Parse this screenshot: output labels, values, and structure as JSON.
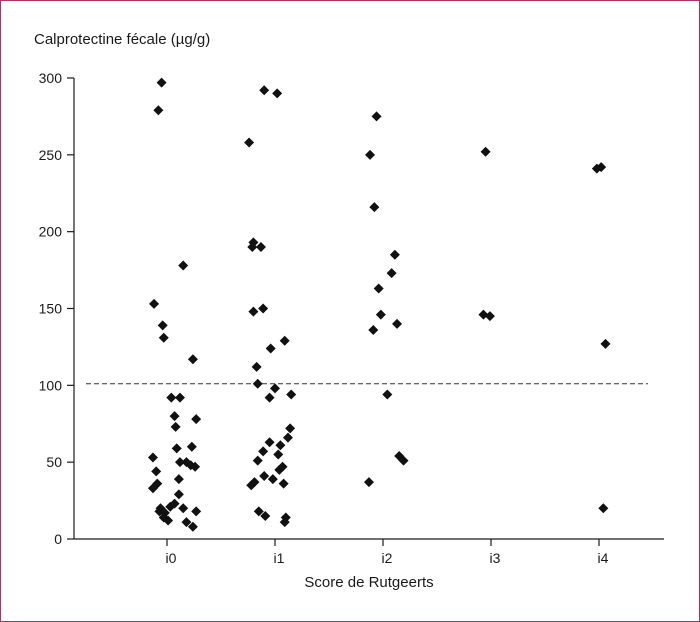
{
  "chart_data": {
    "type": "scatter",
    "title": "",
    "ylabel": "Calprotectine fécale (µg/g)",
    "xlabel": "Score de Rutgeerts",
    "categories": [
      "i0",
      "i1",
      "i2",
      "i3",
      "i4"
    ],
    "ylim": [
      0,
      300
    ],
    "yticks": [
      0,
      50,
      100,
      150,
      200,
      250,
      300
    ],
    "reference_line": {
      "y": 101,
      "style": "dashed"
    },
    "legend": "none",
    "grid": false,
    "series": [
      {
        "values": [
          {
            "category": "i0",
            "jitter": -0.05,
            "y": 297
          },
          {
            "category": "i0",
            "jitter": -0.08,
            "y": 279
          },
          {
            "category": "i0",
            "jitter": 0.15,
            "y": 178
          },
          {
            "category": "i0",
            "jitter": -0.12,
            "y": 153
          },
          {
            "category": "i0",
            "jitter": -0.04,
            "y": 139
          },
          {
            "category": "i0",
            "jitter": -0.03,
            "y": 131
          },
          {
            "category": "i0",
            "jitter": 0.24,
            "y": 117
          },
          {
            "category": "i0",
            "jitter": 0.04,
            "y": 92
          },
          {
            "category": "i0",
            "jitter": 0.12,
            "y": 92
          },
          {
            "category": "i0",
            "jitter": 0.07,
            "y": 80
          },
          {
            "category": "i0",
            "jitter": 0.27,
            "y": 78
          },
          {
            "category": "i0",
            "jitter": 0.08,
            "y": 73
          },
          {
            "category": "i0",
            "jitter": 0.09,
            "y": 59
          },
          {
            "category": "i0",
            "jitter": 0.23,
            "y": 60
          },
          {
            "category": "i0",
            "jitter": -0.13,
            "y": 53
          },
          {
            "category": "i0",
            "jitter": 0.12,
            "y": 50
          },
          {
            "category": "i0",
            "jitter": 0.18,
            "y": 50
          },
          {
            "category": "i0",
            "jitter": 0.22,
            "y": 48
          },
          {
            "category": "i0",
            "jitter": 0.26,
            "y": 47
          },
          {
            "category": "i0",
            "jitter": -0.1,
            "y": 44
          },
          {
            "category": "i0",
            "jitter": 0.11,
            "y": 39
          },
          {
            "category": "i0",
            "jitter": -0.09,
            "y": 36
          },
          {
            "category": "i0",
            "jitter": -0.13,
            "y": 33
          },
          {
            "category": "i0",
            "jitter": 0.11,
            "y": 29
          },
          {
            "category": "i0",
            "jitter": 0.07,
            "y": 23
          },
          {
            "category": "i0",
            "jitter": 0.03,
            "y": 21
          },
          {
            "category": "i0",
            "jitter": -0.06,
            "y": 20
          },
          {
            "category": "i0",
            "jitter": 0.15,
            "y": 20
          },
          {
            "category": "i0",
            "jitter": -0.07,
            "y": 18
          },
          {
            "category": "i0",
            "jitter": -0.02,
            "y": 17
          },
          {
            "category": "i0",
            "jitter": 0.27,
            "y": 18
          },
          {
            "category": "i0",
            "jitter": -0.03,
            "y": 14
          },
          {
            "category": "i0",
            "jitter": 0.01,
            "y": 12
          },
          {
            "category": "i0",
            "jitter": 0.18,
            "y": 11
          },
          {
            "category": "i0",
            "jitter": 0.24,
            "y": 8
          },
          {
            "category": "i1",
            "jitter": -0.1,
            "y": 292
          },
          {
            "category": "i1",
            "jitter": 0.02,
            "y": 290
          },
          {
            "category": "i1",
            "jitter": -0.24,
            "y": 258
          },
          {
            "category": "i1",
            "jitter": -0.2,
            "y": 193
          },
          {
            "category": "i1",
            "jitter": -0.21,
            "y": 190
          },
          {
            "category": "i1",
            "jitter": -0.13,
            "y": 190
          },
          {
            "category": "i1",
            "jitter": -0.11,
            "y": 150
          },
          {
            "category": "i1",
            "jitter": -0.2,
            "y": 148
          },
          {
            "category": "i1",
            "jitter": 0.09,
            "y": 129
          },
          {
            "category": "i1",
            "jitter": -0.04,
            "y": 124
          },
          {
            "category": "i1",
            "jitter": -0.17,
            "y": 112
          },
          {
            "category": "i1",
            "jitter": -0.16,
            "y": 101
          },
          {
            "category": "i1",
            "jitter": 0.0,
            "y": 98
          },
          {
            "category": "i1",
            "jitter": 0.15,
            "y": 94
          },
          {
            "category": "i1",
            "jitter": -0.05,
            "y": 92
          },
          {
            "category": "i1",
            "jitter": 0.14,
            "y": 72
          },
          {
            "category": "i1",
            "jitter": 0.12,
            "y": 66
          },
          {
            "category": "i1",
            "jitter": -0.05,
            "y": 63
          },
          {
            "category": "i1",
            "jitter": 0.05,
            "y": 61
          },
          {
            "category": "i1",
            "jitter": -0.11,
            "y": 57
          },
          {
            "category": "i1",
            "jitter": 0.03,
            "y": 55
          },
          {
            "category": "i1",
            "jitter": -0.16,
            "y": 51
          },
          {
            "category": "i1",
            "jitter": 0.07,
            "y": 47
          },
          {
            "category": "i1",
            "jitter": 0.04,
            "y": 45
          },
          {
            "category": "i1",
            "jitter": -0.1,
            "y": 41
          },
          {
            "category": "i1",
            "jitter": -0.02,
            "y": 39
          },
          {
            "category": "i1",
            "jitter": -0.19,
            "y": 37
          },
          {
            "category": "i1",
            "jitter": -0.22,
            "y": 35
          },
          {
            "category": "i1",
            "jitter": 0.08,
            "y": 36
          },
          {
            "category": "i1",
            "jitter": -0.15,
            "y": 18
          },
          {
            "category": "i1",
            "jitter": -0.09,
            "y": 15
          },
          {
            "category": "i1",
            "jitter": 0.1,
            "y": 14
          },
          {
            "category": "i1",
            "jitter": 0.09,
            "y": 11
          },
          {
            "category": "i2",
            "jitter": -0.06,
            "y": 275
          },
          {
            "category": "i2",
            "jitter": -0.12,
            "y": 250
          },
          {
            "category": "i2",
            "jitter": -0.08,
            "y": 216
          },
          {
            "category": "i2",
            "jitter": 0.11,
            "y": 185
          },
          {
            "category": "i2",
            "jitter": 0.08,
            "y": 173
          },
          {
            "category": "i2",
            "jitter": -0.04,
            "y": 163
          },
          {
            "category": "i2",
            "jitter": -0.02,
            "y": 146
          },
          {
            "category": "i2",
            "jitter": 0.13,
            "y": 140
          },
          {
            "category": "i2",
            "jitter": -0.09,
            "y": 136
          },
          {
            "category": "i2",
            "jitter": 0.04,
            "y": 94
          },
          {
            "category": "i2",
            "jitter": 0.15,
            "y": 54
          },
          {
            "category": "i2",
            "jitter": 0.19,
            "y": 51
          },
          {
            "category": "i2",
            "jitter": -0.13,
            "y": 37
          },
          {
            "category": "i3",
            "jitter": -0.05,
            "y": 252
          },
          {
            "category": "i3",
            "jitter": -0.07,
            "y": 146
          },
          {
            "category": "i3",
            "jitter": -0.01,
            "y": 145
          },
          {
            "category": "i4",
            "jitter": -0.02,
            "y": 241
          },
          {
            "category": "i4",
            "jitter": 0.02,
            "y": 242
          },
          {
            "category": "i4",
            "jitter": 0.06,
            "y": 127
          },
          {
            "category": "i4",
            "jitter": 0.04,
            "y": 20
          }
        ]
      }
    ]
  }
}
